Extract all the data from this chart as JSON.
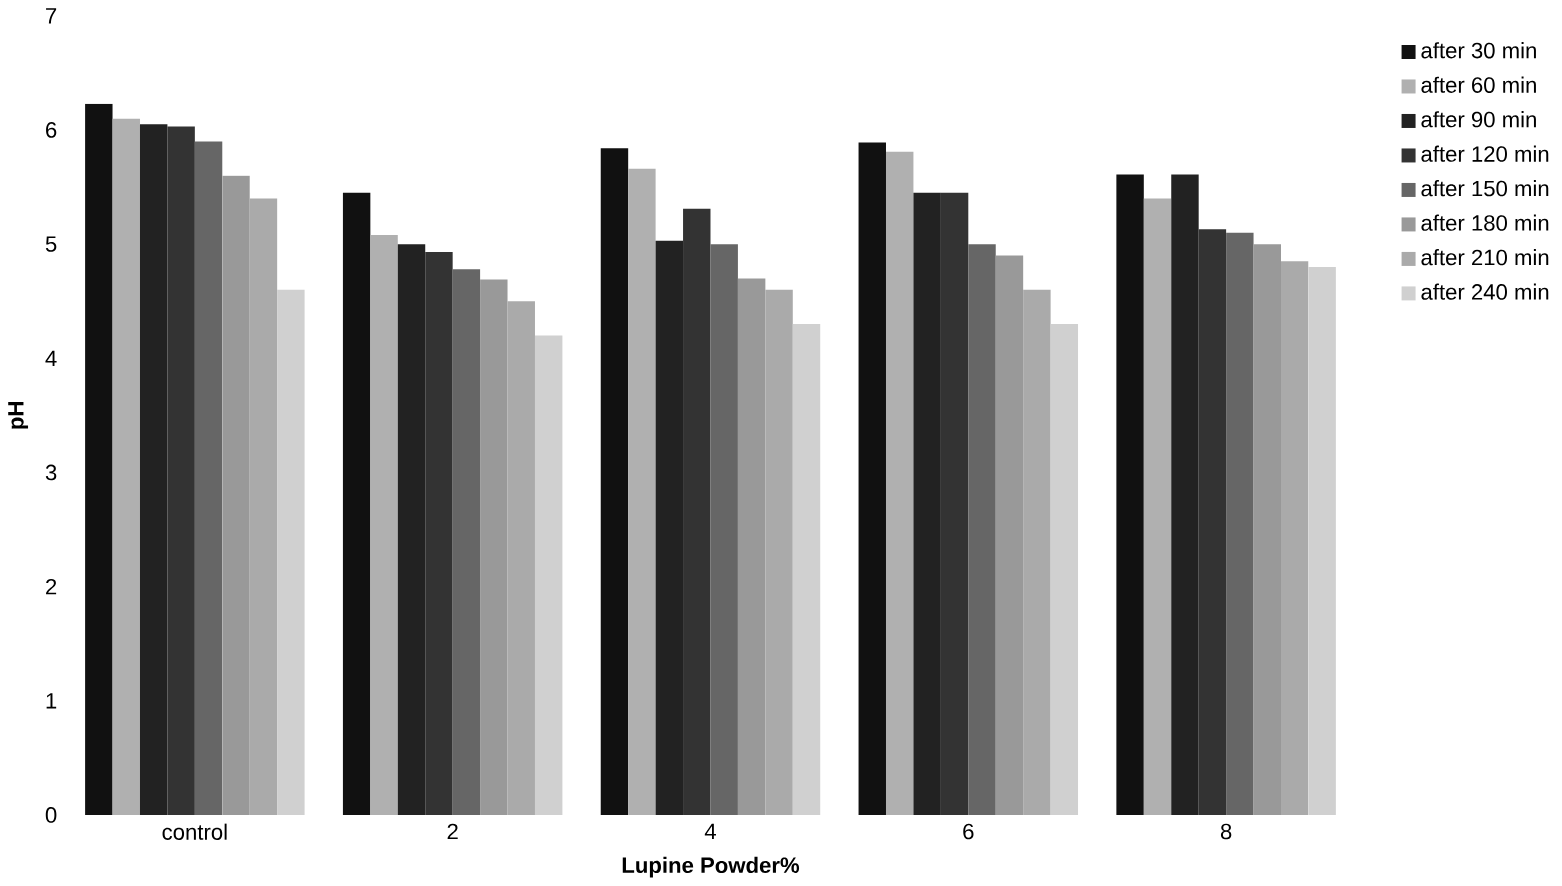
{
  "chart_data": {
    "type": "bar",
    "xlabel": "Lupine Powder%",
    "ylabel": "pH",
    "categories": [
      "control",
      "2",
      "4",
      "6",
      "8"
    ],
    "ylim": [
      0,
      7
    ],
    "yticks": [
      0,
      1,
      2,
      3,
      4,
      5,
      6,
      7
    ],
    "legend": "right",
    "grid": false,
    "series": [
      {
        "name": "after 30 min",
        "color": "#111111",
        "values": [
          6.23,
          5.45,
          5.84,
          5.89,
          5.61
        ]
      },
      {
        "name": "after 60 min",
        "color": "#b0b0b0",
        "values": [
          6.1,
          5.08,
          5.66,
          5.81,
          5.4
        ]
      },
      {
        "name": "after 90 min",
        "color": "#222222",
        "values": [
          6.05,
          5.0,
          5.03,
          5.45,
          5.61
        ]
      },
      {
        "name": "after 120 min",
        "color": "#333333",
        "values": [
          6.03,
          4.93,
          5.31,
          5.45,
          5.13
        ]
      },
      {
        "name": "after 150 min",
        "color": "#666666",
        "values": [
          5.9,
          4.78,
          5.0,
          5.0,
          5.1
        ]
      },
      {
        "name": "after 180 min",
        "color": "#999999",
        "values": [
          5.6,
          4.69,
          4.7,
          4.9,
          5.0
        ]
      },
      {
        "name": "after 210 min",
        "color": "#aaaaaa",
        "values": [
          5.4,
          4.5,
          4.6,
          4.6,
          4.85
        ]
      },
      {
        "name": "after 240 min",
        "color": "#d0d0d0",
        "values": [
          4.6,
          4.2,
          4.3,
          4.3,
          4.8
        ]
      }
    ]
  }
}
